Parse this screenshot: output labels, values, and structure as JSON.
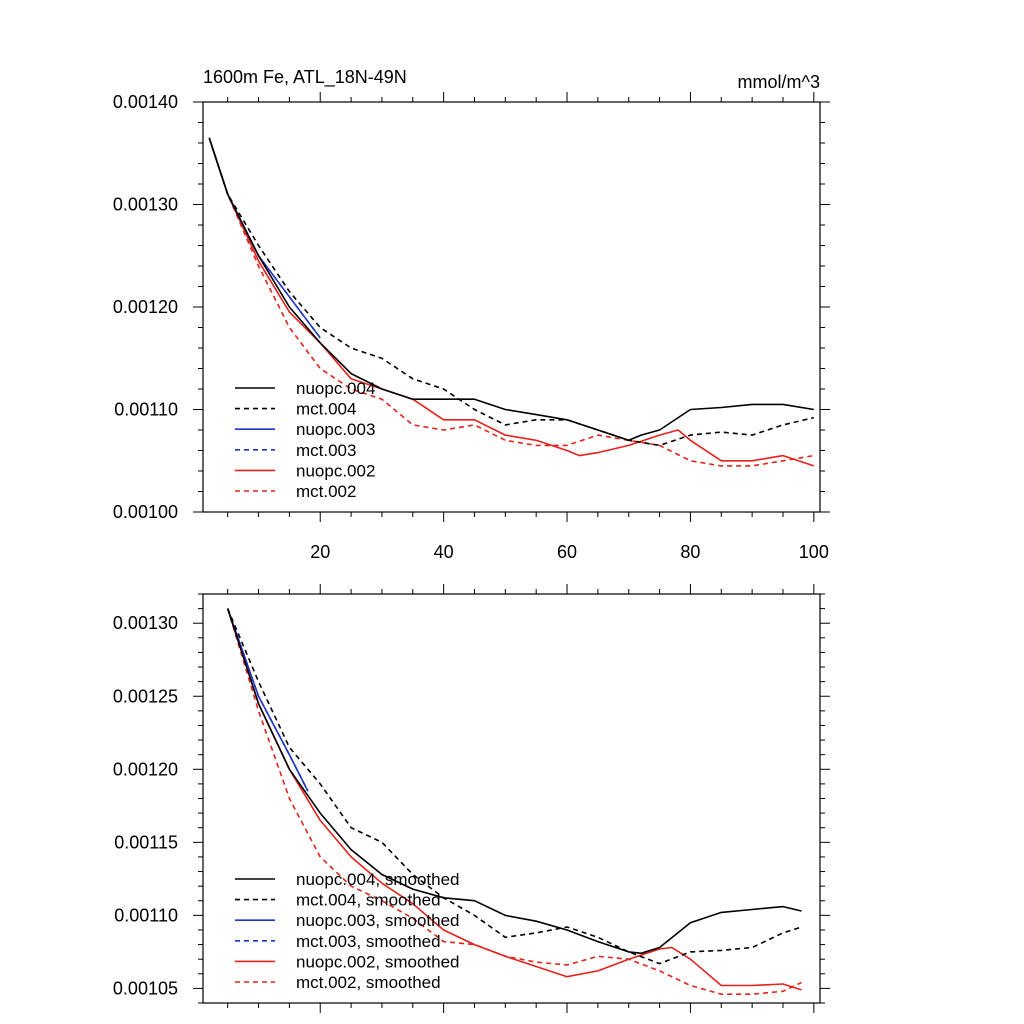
{
  "chart_data": [
    {
      "type": "line",
      "title_left": "1600m Fe, ATL_18N-49N",
      "title_right": "mmol/m^3",
      "xlim": [
        1,
        101
      ],
      "ylim": [
        0.001,
        0.0014
      ],
      "xticks": [
        20,
        40,
        60,
        80,
        100
      ],
      "xtick_labels": [
        "20",
        "40",
        "60",
        "80",
        "100"
      ],
      "yticks": [
        0.001,
        0.0011,
        0.0012,
        0.0013,
        0.0014
      ],
      "ytick_labels": [
        "0.00100",
        "0.00110",
        "0.00120",
        "0.00130",
        "0.00140"
      ],
      "legend_position": "lower-left",
      "series": [
        {
          "name": "nuopc.004",
          "color": "#000000",
          "dash": "solid",
          "x": [
            2,
            5,
            10,
            15,
            20,
            25,
            30,
            35,
            40,
            45,
            50,
            55,
            60,
            65,
            70,
            72,
            75,
            80,
            85,
            90,
            95,
            100
          ],
          "y": [
            0.001365,
            0.00131,
            0.00125,
            0.0012,
            0.001165,
            0.001135,
            0.00112,
            0.00111,
            0.00111,
            0.00111,
            0.0011,
            0.001095,
            0.00109,
            0.00108,
            0.00107,
            0.001075,
            0.00108,
            0.0011,
            0.001102,
            0.001105,
            0.001105,
            0.0011
          ]
        },
        {
          "name": "mct.004",
          "color": "#000000",
          "dash": "dashed",
          "x": [
            2,
            5,
            10,
            15,
            20,
            25,
            30,
            35,
            40,
            45,
            50,
            55,
            60,
            65,
            70,
            75,
            80,
            85,
            90,
            95,
            100
          ],
          "y": [
            0.001365,
            0.00131,
            0.00126,
            0.001215,
            0.00118,
            0.00116,
            0.00115,
            0.00113,
            0.00112,
            0.0011,
            0.001085,
            0.00109,
            0.00109,
            0.00108,
            0.00107,
            0.001065,
            0.001075,
            0.001078,
            0.001075,
            0.001085,
            0.001092
          ]
        },
        {
          "name": "nuopc.003",
          "color": "#1f35c8",
          "dash": "solid",
          "x": [
            2,
            5,
            10,
            15,
            20
          ],
          "y": [
            0.001365,
            0.00131,
            0.00125,
            0.00121,
            0.00117
          ]
        },
        {
          "name": "mct.003",
          "color": "#1f35c8",
          "dash": "dashed",
          "x": [
            2,
            5,
            10,
            15,
            20
          ],
          "y": [
            0.001365,
            0.00131,
            0.00125,
            0.00121,
            0.00117
          ]
        },
        {
          "name": "nuopc.002",
          "color": "#e8211b",
          "dash": "solid",
          "x": [
            2,
            5,
            10,
            15,
            20,
            25,
            30,
            35,
            40,
            45,
            50,
            55,
            60,
            62,
            65,
            70,
            75,
            78,
            80,
            85,
            90,
            95,
            100
          ],
          "y": [
            0.001365,
            0.00131,
            0.001245,
            0.001195,
            0.001165,
            0.00113,
            0.00112,
            0.00111,
            0.00109,
            0.00109,
            0.001075,
            0.00107,
            0.00106,
            0.001055,
            0.001058,
            0.001065,
            0.001075,
            0.00108,
            0.00107,
            0.00105,
            0.00105,
            0.001055,
            0.001045
          ]
        },
        {
          "name": "mct.002",
          "color": "#e8211b",
          "dash": "dashed",
          "x": [
            2,
            5,
            10,
            15,
            20,
            25,
            30,
            35,
            40,
            45,
            50,
            55,
            60,
            65,
            70,
            75,
            80,
            85,
            90,
            95,
            100
          ],
          "y": [
            0.001365,
            0.00131,
            0.00124,
            0.00118,
            0.00114,
            0.00112,
            0.00111,
            0.001085,
            0.00108,
            0.001085,
            0.00107,
            0.001065,
            0.001065,
            0.001075,
            0.00107,
            0.001065,
            0.00105,
            0.001045,
            0.001045,
            0.00105,
            0.001055
          ]
        }
      ]
    },
    {
      "type": "line",
      "xlim": [
        1,
        101
      ],
      "ylim": [
        0.00104,
        0.00132
      ],
      "xticks": [
        20,
        40,
        60,
        80,
        100
      ],
      "xtick_labels": [],
      "yticks": [
        0.00105,
        0.0011,
        0.00115,
        0.0012,
        0.00125,
        0.0013
      ],
      "ytick_labels": [
        "0.00105",
        "0.00110",
        "0.00115",
        "0.00120",
        "0.00125",
        "0.00130"
      ],
      "legend_position": "lower-left",
      "series": [
        {
          "name": "nuopc.004, smoothed",
          "color": "#000000",
          "dash": "solid",
          "x": [
            5,
            10,
            15,
            20,
            25,
            30,
            35,
            40,
            45,
            50,
            55,
            60,
            65,
            70,
            72,
            75,
            80,
            85,
            90,
            95,
            98
          ],
          "y": [
            0.00131,
            0.001245,
            0.0012,
            0.00117,
            0.001145,
            0.001128,
            0.001118,
            0.001112,
            0.00111,
            0.0011,
            0.001096,
            0.00109,
            0.001082,
            0.001075,
            0.001074,
            0.001078,
            0.001095,
            0.001102,
            0.001104,
            0.001106,
            0.001103
          ]
        },
        {
          "name": "mct.004, smoothed",
          "color": "#000000",
          "dash": "dashed",
          "x": [
            5,
            10,
            15,
            20,
            25,
            30,
            35,
            40,
            45,
            50,
            55,
            60,
            65,
            70,
            75,
            80,
            85,
            90,
            95,
            98
          ],
          "y": [
            0.00131,
            0.00126,
            0.001215,
            0.00119,
            0.00116,
            0.00115,
            0.001128,
            0.001112,
            0.0011,
            0.001085,
            0.001088,
            0.001092,
            0.001085,
            0.001075,
            0.001067,
            0.001075,
            0.001076,
            0.001078,
            0.001088,
            0.001092
          ]
        },
        {
          "name": "nuopc.003, smoothed",
          "color": "#1f35c8",
          "dash": "solid",
          "x": [
            5,
            10,
            15,
            18
          ],
          "y": [
            0.00131,
            0.00125,
            0.00121,
            0.001185
          ]
        },
        {
          "name": "mct.003, smoothed",
          "color": "#1f35c8",
          "dash": "dashed",
          "x": [
            5,
            10,
            15,
            18
          ],
          "y": [
            0.00131,
            0.00125,
            0.00121,
            0.001185
          ]
        },
        {
          "name": "nuopc.002, smoothed",
          "color": "#e8211b",
          "dash": "solid",
          "x": [
            5,
            10,
            15,
            20,
            25,
            30,
            35,
            40,
            45,
            50,
            55,
            60,
            65,
            70,
            75,
            77,
            80,
            85,
            90,
            95,
            98
          ],
          "y": [
            0.00131,
            0.001245,
            0.0012,
            0.001165,
            0.00114,
            0.001122,
            0.001108,
            0.00109,
            0.00108,
            0.001072,
            0.001065,
            0.001058,
            0.001062,
            0.00107,
            0.001077,
            0.001078,
            0.00107,
            0.001052,
            0.001052,
            0.001053,
            0.001049
          ]
        },
        {
          "name": "mct.002, smoothed",
          "color": "#e8211b",
          "dash": "dashed",
          "x": [
            5,
            10,
            15,
            20,
            25,
            30,
            35,
            40,
            45,
            50,
            55,
            60,
            65,
            70,
            75,
            80,
            85,
            90,
            95,
            98
          ],
          "y": [
            0.00131,
            0.00124,
            0.00118,
            0.00114,
            0.00112,
            0.00111,
            0.001098,
            0.001082,
            0.00108,
            0.001072,
            0.001068,
            0.001066,
            0.001072,
            0.00107,
            0.001062,
            0.001052,
            0.001046,
            0.001046,
            0.001048,
            0.001054
          ]
        }
      ]
    }
  ]
}
